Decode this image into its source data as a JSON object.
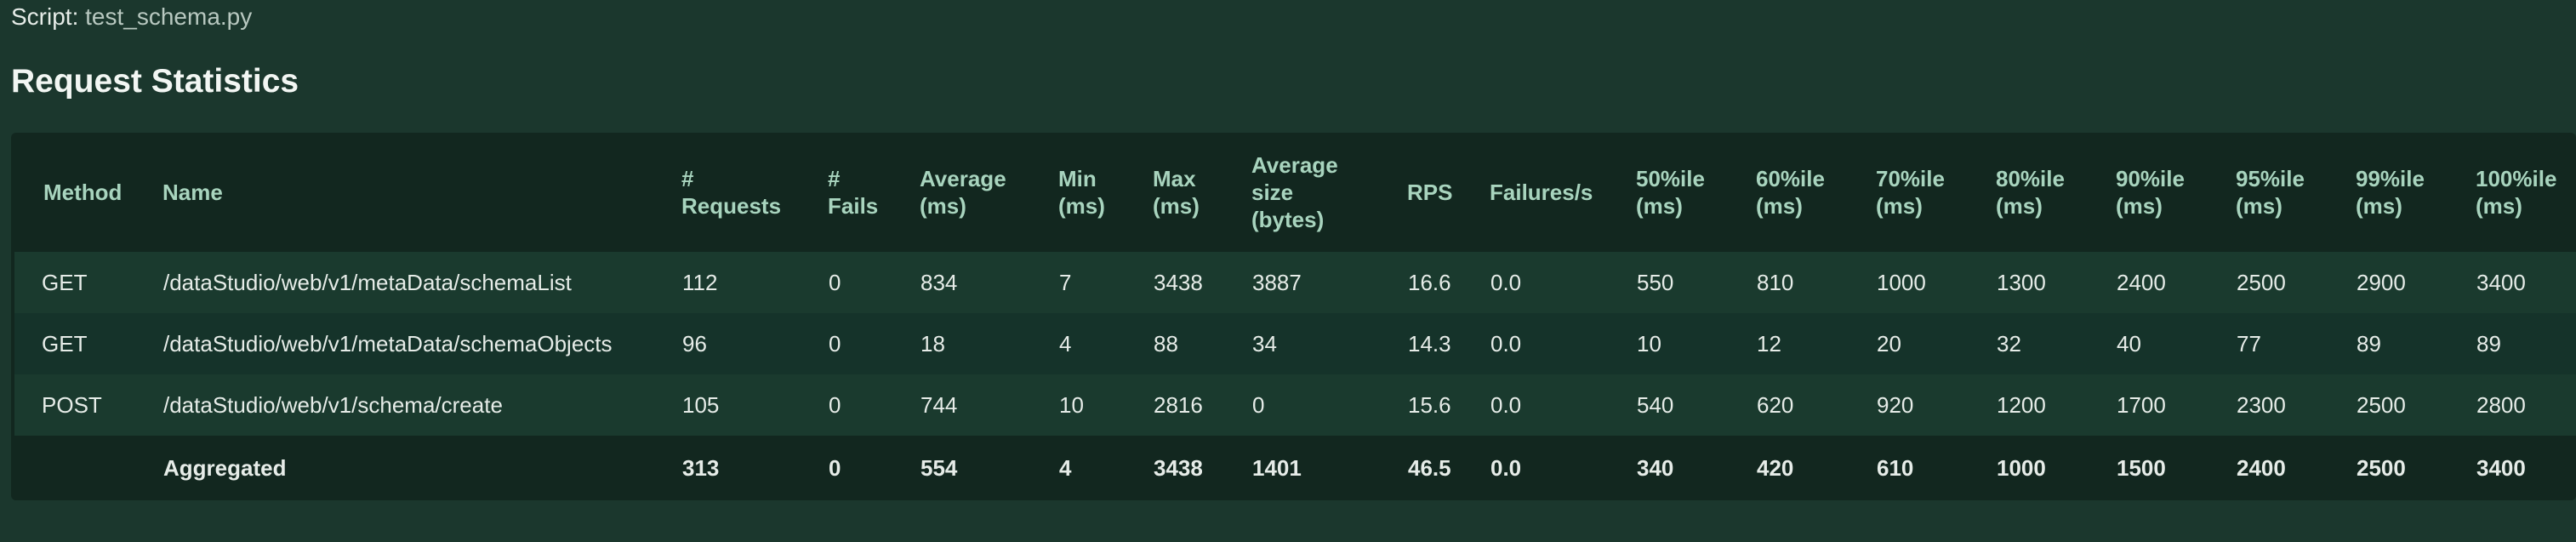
{
  "script": {
    "label": "Script:",
    "value": "test_schema.py"
  },
  "section_title": "Request Statistics",
  "table": {
    "headers": [
      [
        "Method"
      ],
      [
        "Name"
      ],
      [
        "#",
        "Requests"
      ],
      [
        "#",
        "Fails"
      ],
      [
        "Average",
        "(ms)"
      ],
      [
        "Min",
        "(ms)"
      ],
      [
        "Max",
        "(ms)"
      ],
      [
        "Average",
        "size",
        "(bytes)"
      ],
      [
        "RPS"
      ],
      [
        "Failures/s"
      ],
      [
        "50%ile",
        "(ms)"
      ],
      [
        "60%ile",
        "(ms)"
      ],
      [
        "70%ile",
        "(ms)"
      ],
      [
        "80%ile",
        "(ms)"
      ],
      [
        "90%ile",
        "(ms)"
      ],
      [
        "95%ile",
        "(ms)"
      ],
      [
        "99%ile",
        "(ms)"
      ],
      [
        "100%ile",
        "(ms)"
      ]
    ],
    "rows": [
      [
        "GET",
        "/dataStudio/web/v1/metaData/schemaList",
        "112",
        "0",
        "834",
        "7",
        "3438",
        "3887",
        "16.6",
        "0.0",
        "550",
        "810",
        "1000",
        "1300",
        "2400",
        "2500",
        "2900",
        "3400"
      ],
      [
        "GET",
        "/dataStudio/web/v1/metaData/schemaObjects",
        "96",
        "0",
        "18",
        "4",
        "88",
        "34",
        "14.3",
        "0.0",
        "10",
        "12",
        "20",
        "32",
        "40",
        "77",
        "89",
        "89"
      ],
      [
        "POST",
        "/dataStudio/web/v1/schema/create",
        "105",
        "0",
        "744",
        "10",
        "2816",
        "0",
        "15.6",
        "0.0",
        "540",
        "620",
        "920",
        "1200",
        "1700",
        "2300",
        "2500",
        "2800"
      ]
    ],
    "aggregated": [
      "",
      "Aggregated",
      "313",
      "0",
      "554",
      "4",
      "3438",
      "1401",
      "46.5",
      "0.0",
      "340",
      "420",
      "610",
      "1000",
      "1500",
      "2400",
      "2500",
      "3400"
    ]
  }
}
